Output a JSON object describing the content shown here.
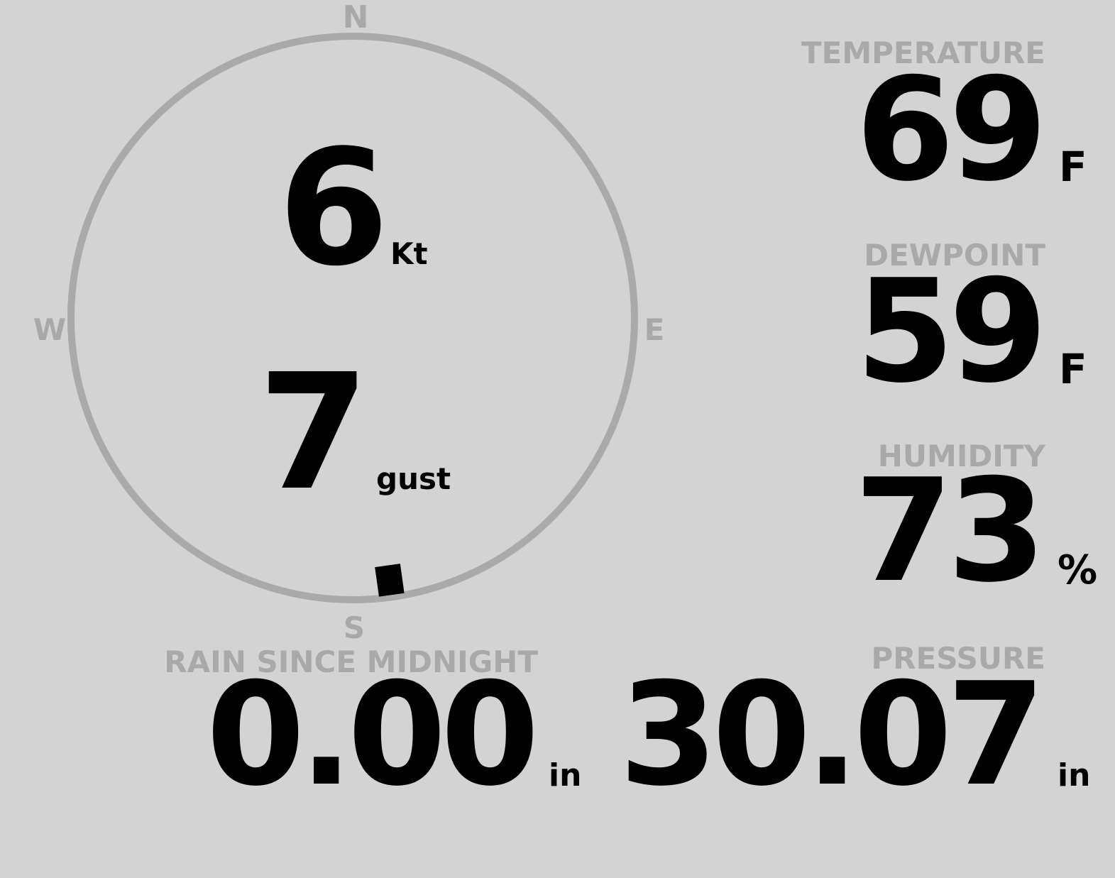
{
  "colors": {
    "background": "#d3d3d3",
    "label": "#a9a9a9",
    "value": "#000000",
    "ring": "#aaaaaa"
  },
  "compass": {
    "north": "N",
    "south": "S",
    "east": "E",
    "west": "W",
    "wind_direction_deg": 172
  },
  "wind": {
    "speed": "6",
    "speed_unit": "Kt",
    "gust": "7",
    "gust_unit": "gust"
  },
  "temperature": {
    "label": "TEMPERATURE",
    "value": "69",
    "unit": "F"
  },
  "dewpoint": {
    "label": "DEWPOINT",
    "value": "59",
    "unit": "F"
  },
  "humidity": {
    "label": "HUMIDITY",
    "value": "73",
    "unit": "%"
  },
  "pressure": {
    "label": "PRESSURE",
    "value": "30.07",
    "unit": "in"
  },
  "rain": {
    "label": "RAIN SINCE MIDNIGHT",
    "value": "0.00",
    "unit": "in"
  }
}
